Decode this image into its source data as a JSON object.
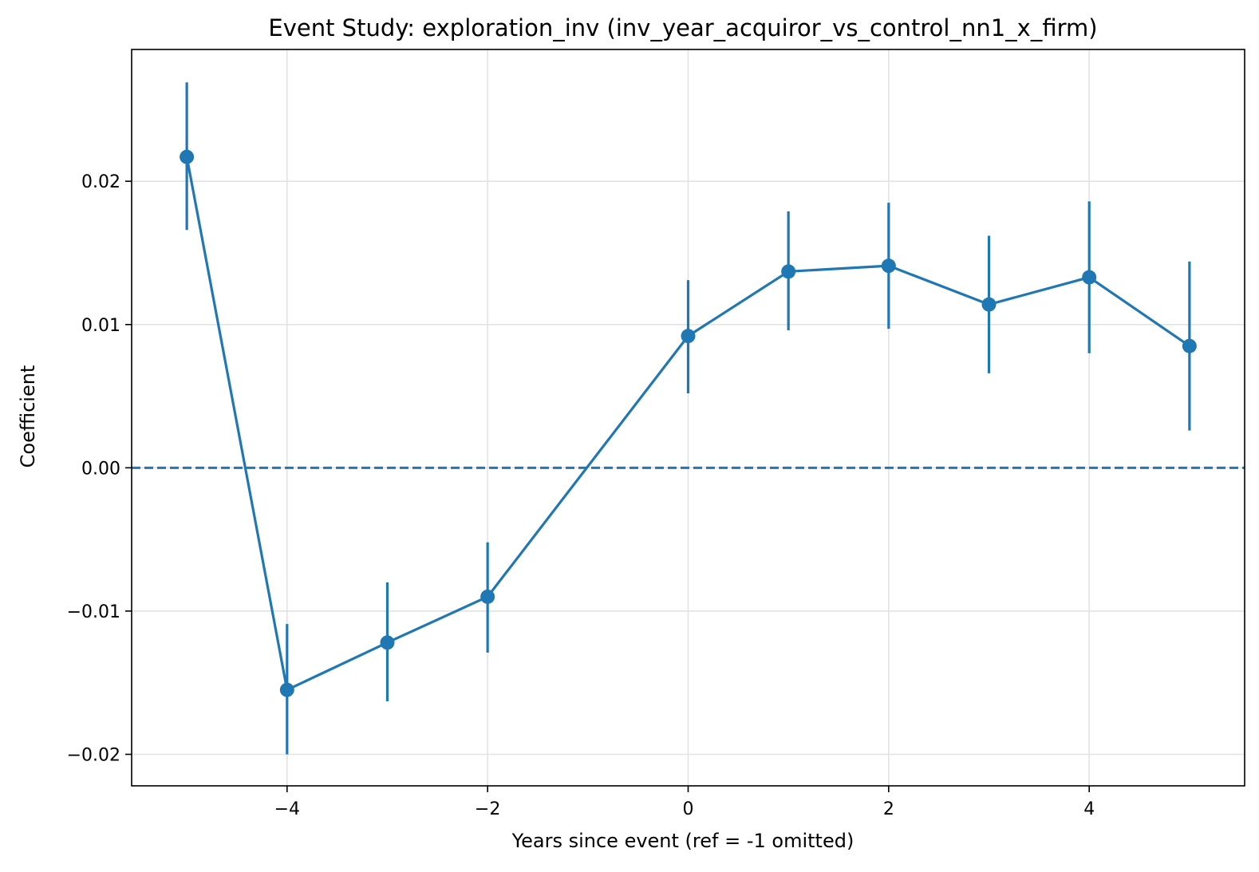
{
  "chart_data": {
    "type": "line",
    "title": "Event Study: exploration_inv (inv_year_acquiror_vs_control_nn1_x_firm)",
    "xlabel": "Years since event (ref = -1 omitted)",
    "ylabel": "Coefficient",
    "xlim": [
      -5.55,
      5.55
    ],
    "ylim": [
      -0.0222,
      0.0292
    ],
    "grid": true,
    "x_ticks": [
      -4,
      -2,
      0,
      2,
      4
    ],
    "x_tick_labels": [
      "−4",
      "−2",
      "0",
      "2",
      "4"
    ],
    "y_ticks": [
      -0.02,
      -0.01,
      0.0,
      0.01,
      0.02
    ],
    "y_tick_labels": [
      "−0.02",
      "−0.01",
      "0.00",
      "0.01",
      "0.02"
    ],
    "reference_line": {
      "y": 0.0,
      "style": "dashed"
    },
    "color": "#1f77b4",
    "series": [
      {
        "x": [
          -5,
          -4,
          -3,
          -2,
          0,
          1,
          2,
          3,
          4,
          5
        ],
        "values": [
          0.0217,
          -0.0155,
          -0.0122,
          -0.009,
          0.0092,
          0.0137,
          0.0141,
          0.0114,
          0.0133,
          0.0085
        ],
        "ci_low": [
          0.0166,
          -0.02,
          -0.0163,
          -0.0129,
          0.0052,
          0.0096,
          0.0097,
          0.0066,
          0.008,
          0.0026
        ],
        "ci_high": [
          0.0269,
          -0.0109,
          -0.008,
          -0.0052,
          0.0131,
          0.0179,
          0.0185,
          0.0162,
          0.0186,
          0.0144
        ]
      }
    ]
  }
}
